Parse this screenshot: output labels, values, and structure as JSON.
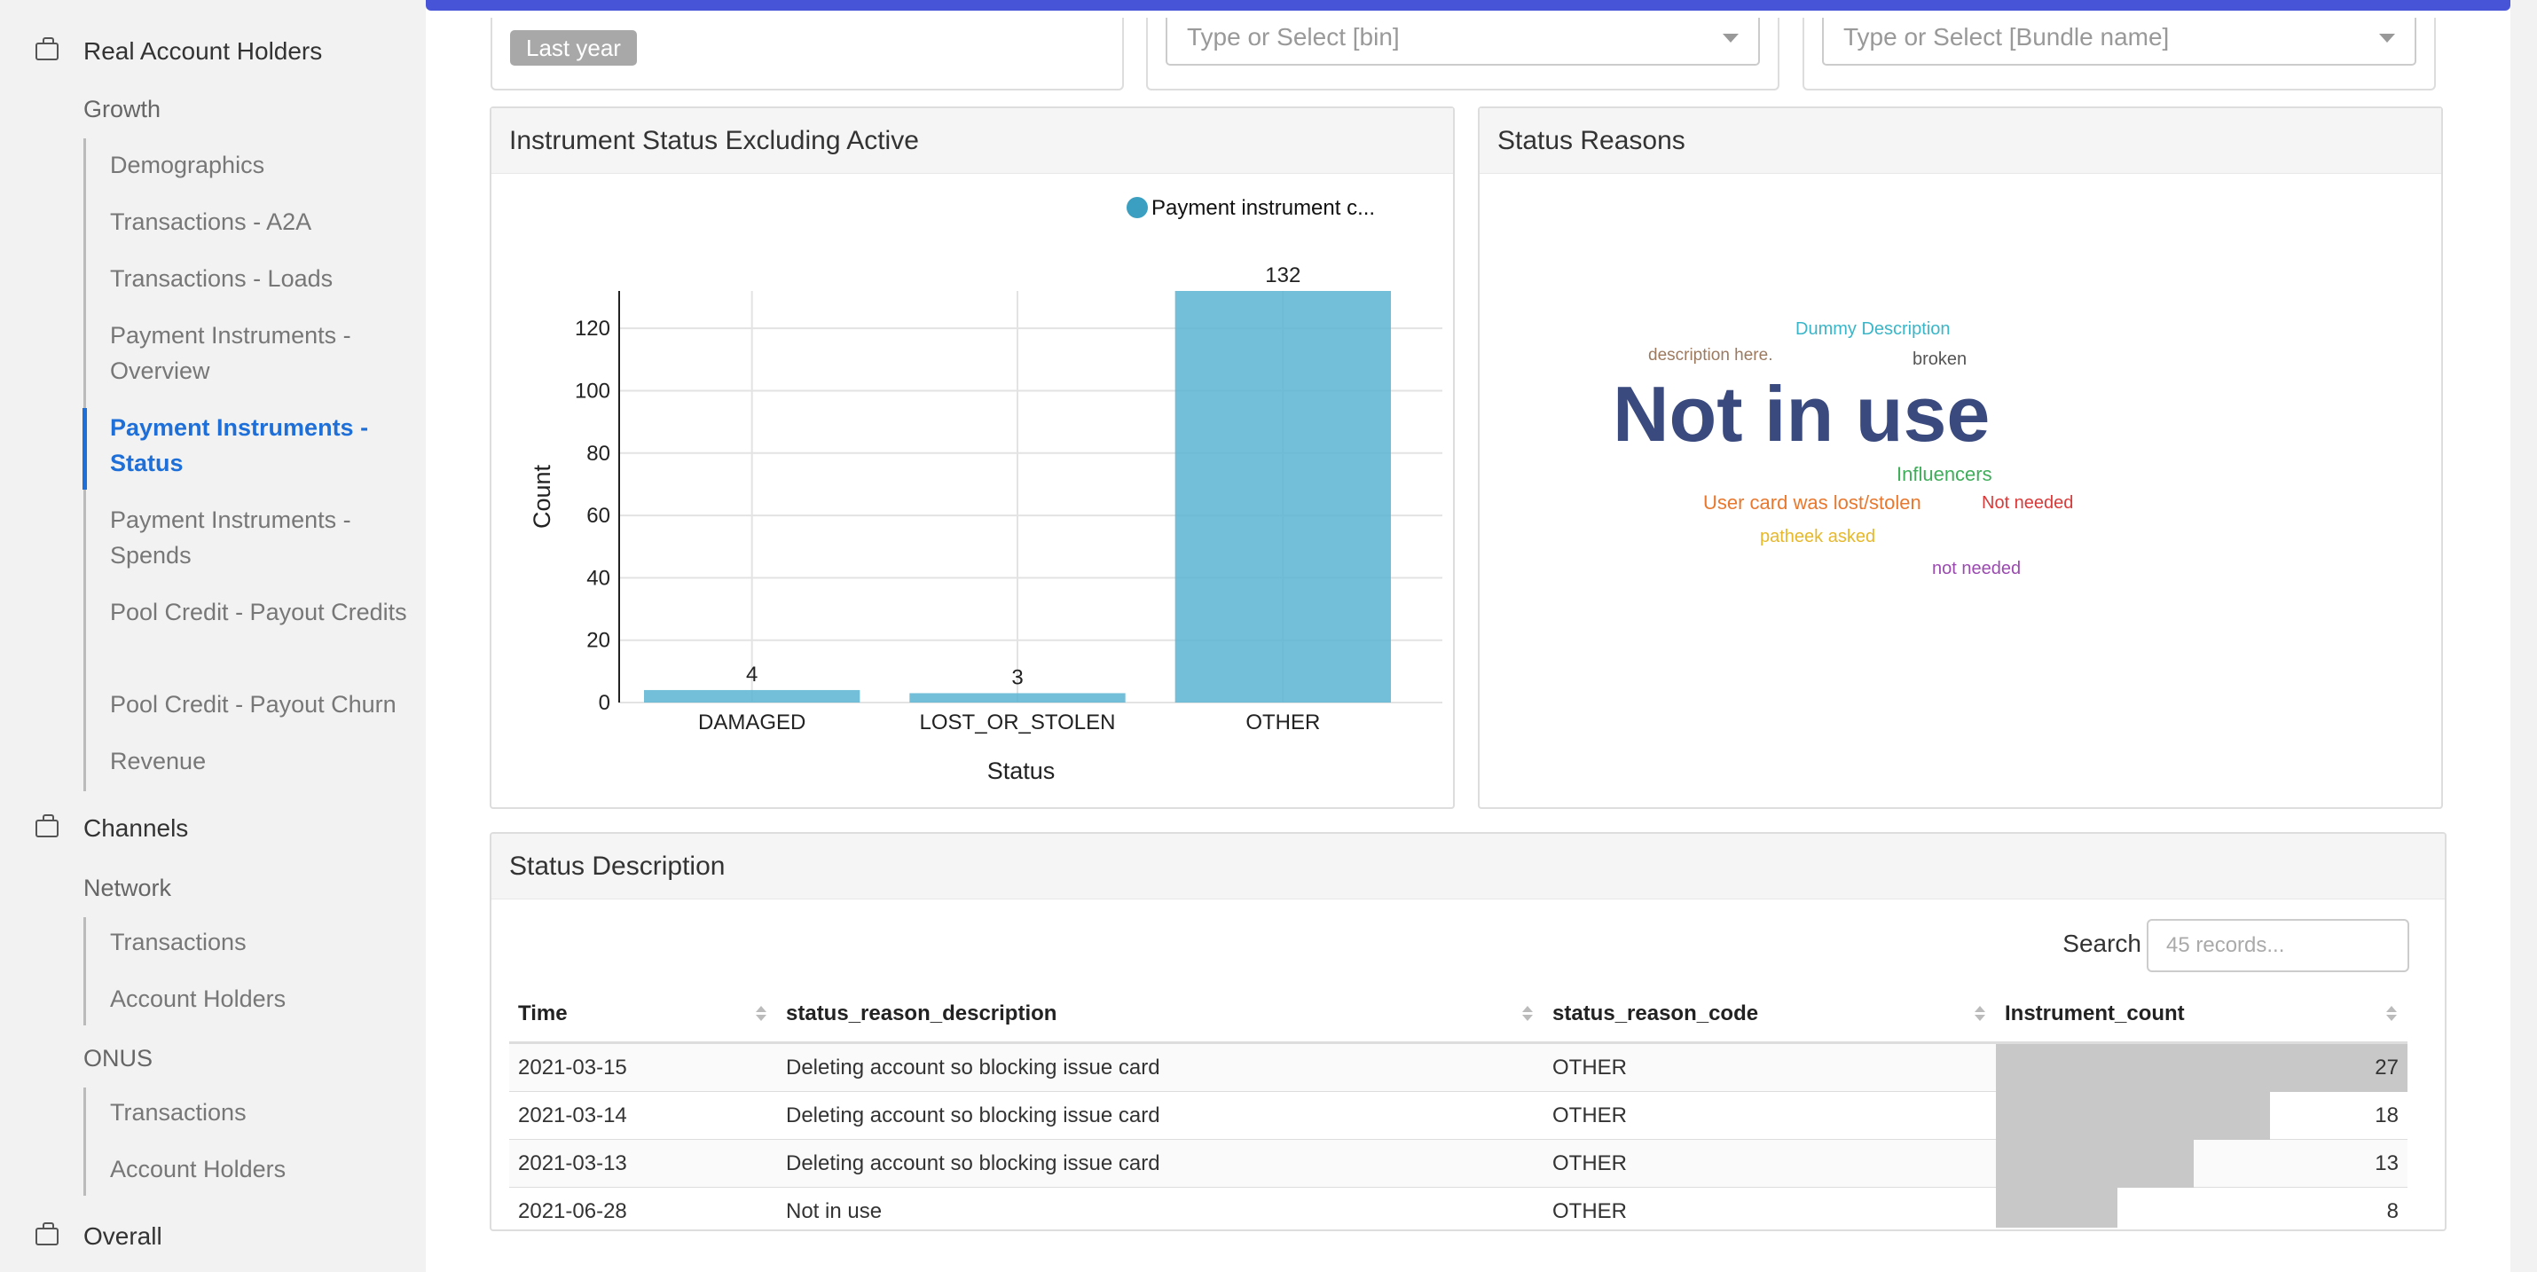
{
  "sidebar": {
    "section1": "Real Account Holders",
    "sub_growth": "Growth",
    "growth_items": [
      "Demographics",
      "Transactions - A2A",
      "Transactions - Loads",
      "Payment Instruments - Overview",
      "Payment Instruments - Status",
      "Payment Instruments - Spends",
      "Pool Credit - Payout Credits",
      "Pool Credit - Payout Churn",
      "Revenue"
    ],
    "section2": "Channels",
    "sub_network": "Network",
    "network_items": [
      "Transactions",
      "Account Holders"
    ],
    "sub_onus": "ONUS",
    "onus_items": [
      "Transactions",
      "Account Holders"
    ],
    "section3": "Overall"
  },
  "filters": {
    "date_chip": "Last year",
    "bin_placeholder": "Type or Select [bin]",
    "bundle_placeholder": "Type or Select [Bundle name]"
  },
  "chart_panel": {
    "title": "Instrument Status Excluding Active"
  },
  "chart_data": {
    "type": "bar",
    "categories": [
      "DAMAGED",
      "LOST_OR_STOLEN",
      "OTHER"
    ],
    "series": [
      {
        "name": "Payment instrument c...",
        "values": [
          4,
          3,
          132
        ]
      }
    ],
    "xlabel": "Status",
    "ylabel": "Count",
    "ylim": [
      0,
      132
    ],
    "yticks": [
      0,
      20,
      40,
      60,
      80,
      100,
      120
    ],
    "grid": true,
    "legend": "top-right",
    "color": "#5ab4d2"
  },
  "reasons_panel": {
    "title": "Status Reasons",
    "words": [
      {
        "text": "Dummy Description",
        "color": "#3ab6c8"
      },
      {
        "text": "description here.",
        "color": "#9b7a60"
      },
      {
        "text": "broken",
        "color": "#555555"
      },
      {
        "text": "Not in use",
        "color": "#3a4a7e"
      },
      {
        "text": "Influencers",
        "color": "#3fae5a"
      },
      {
        "text": "User card was lost/stolen",
        "color": "#e8782e"
      },
      {
        "text": "Not needed",
        "color": "#d93a3a"
      },
      {
        "text": "patheek asked",
        "color": "#e6b82a"
      },
      {
        "text": "not needed",
        "color": "#9b4ab0"
      }
    ]
  },
  "table_panel": {
    "title": "Status Description",
    "search_label": "Search",
    "search_placeholder": "45 records...",
    "columns": [
      "Time",
      "status_reason_description",
      "status_reason_code",
      "Instrument_count"
    ],
    "rows": [
      {
        "time": "2021-03-15",
        "desc": "Deleting account so blocking issue card",
        "code": "OTHER",
        "count": 27
      },
      {
        "time": "2021-03-14",
        "desc": "Deleting account so blocking issue card",
        "code": "OTHER",
        "count": 18
      },
      {
        "time": "2021-03-13",
        "desc": "Deleting account so blocking issue card",
        "code": "OTHER",
        "count": 13
      },
      {
        "time": "2021-06-28",
        "desc": "Not in use",
        "code": "OTHER",
        "count": 8
      }
    ]
  }
}
